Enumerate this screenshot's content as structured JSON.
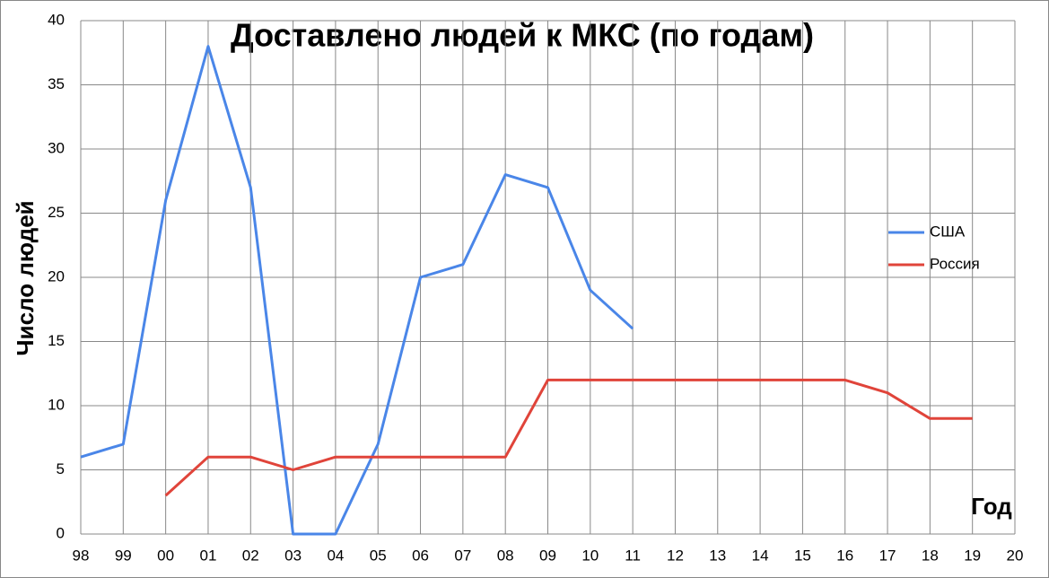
{
  "chart_data": {
    "type": "line",
    "title": "Доставлено людей к МКС (по годам)",
    "x_label": "Год",
    "y_label": "Число людей",
    "categories": [
      "98",
      "99",
      "00",
      "01",
      "02",
      "03",
      "04",
      "05",
      "06",
      "07",
      "08",
      "09",
      "10",
      "11",
      "12",
      "13",
      "14",
      "15",
      "16",
      "17",
      "18",
      "19",
      "20"
    ],
    "series": [
      {
        "name": "США",
        "color": "#4a86e8",
        "values": [
          6,
          7,
          26,
          38,
          27,
          0,
          0,
          7,
          20,
          21,
          28,
          27,
          19,
          16,
          null,
          null,
          null,
          null,
          null,
          null,
          null,
          null,
          null
        ]
      },
      {
        "name": "Россия",
        "color": "#e0443a",
        "values": [
          null,
          null,
          3,
          6,
          6,
          5,
          6,
          6,
          6,
          6,
          6,
          12,
          12,
          12,
          12,
          12,
          12,
          12,
          12,
          11,
          9,
          9,
          null
        ]
      }
    ],
    "ylim": [
      0,
      40
    ],
    "yticks": [
      0,
      5,
      10,
      15,
      20,
      25,
      30,
      35,
      40
    ],
    "grid": true,
    "legend": "right"
  }
}
